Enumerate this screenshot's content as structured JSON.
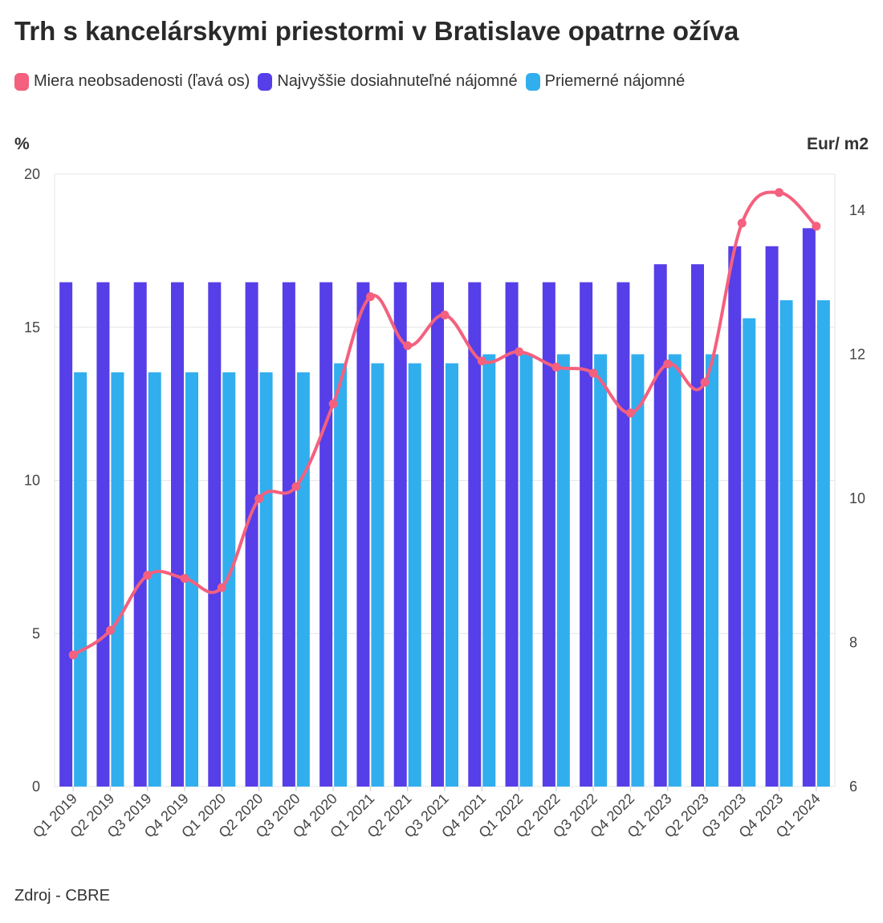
{
  "chart_data": {
    "type": "bar",
    "title": "Trh s kancelárskymi priestormi v Bratislave opatrne ožíva",
    "source": "Zdroj - CBRE",
    "left_axis_label": "%",
    "right_axis_label": "Eur/ m2",
    "left_ylim": [
      0,
      20
    ],
    "right_ylim": [
      6,
      14.5
    ],
    "left_ticks": [
      0,
      5,
      10,
      15,
      20
    ],
    "right_ticks": [
      6,
      8,
      10,
      12,
      14
    ],
    "categories": [
      "Q1 2019",
      "Q2 2019",
      "Q3 2019",
      "Q4 2019",
      "Q1 2020",
      "Q2 2020",
      "Q3 2020",
      "Q4 2020",
      "Q1 2021",
      "Q2 2021",
      "Q3 2021",
      "Q4 2021",
      "Q1 2022",
      "Q2 2022",
      "Q3 2022",
      "Q4 2022",
      "Q1 2023",
      "Q2 2023",
      "Q3 2023",
      "Q4 2023",
      "Q1 2024"
    ],
    "series": [
      {
        "name": "Miera neobsadenosti (ľavá os)",
        "type": "line",
        "axis": "left",
        "color": "#f4607e",
        "values": [
          4.3,
          5.1,
          6.9,
          6.8,
          6.5,
          9.4,
          9.8,
          12.5,
          16.0,
          14.4,
          15.4,
          13.9,
          14.2,
          13.7,
          13.5,
          12.2,
          13.8,
          13.2,
          18.4,
          19.4,
          18.3
        ]
      },
      {
        "name": "Najvyššie dosiahnuteľné nájomné",
        "type": "bar",
        "axis": "right",
        "color": "#563ee8",
        "values": [
          13,
          13,
          13,
          13,
          13,
          13,
          13,
          13,
          13,
          13,
          13,
          13,
          13,
          13,
          13,
          13,
          13.25,
          13.25,
          13.5,
          13.5,
          13.75
        ]
      },
      {
        "name": "Priemerné nájomné",
        "type": "bar",
        "axis": "right",
        "color": "#31aeee",
        "values": [
          11.75,
          11.75,
          11.75,
          11.75,
          11.75,
          11.75,
          11.75,
          11.875,
          11.875,
          11.875,
          11.875,
          12,
          12,
          12,
          12,
          12,
          12,
          12,
          12.5,
          12.75,
          12.75
        ]
      }
    ]
  }
}
